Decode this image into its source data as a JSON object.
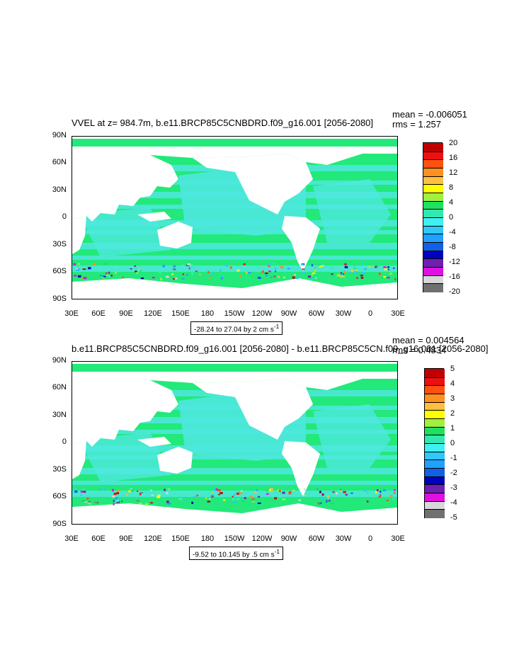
{
  "colors": {
    "land": "#ffffff",
    "ocean_base": "#5fe4a0",
    "ocean_zero_low": "#22e97a",
    "ocean_cyan": "#4ee8de"
  },
  "panels": [
    {
      "title": "VVEL at z= 984.7m, b.e11.BRCP85C5CNBDRD.f09_g16.001 [2056-2080]",
      "mean": "mean = -0.006051",
      "rms": "rms = 1.257",
      "range_label": "-28.24 to 27.04 by 2 cm s",
      "range_unit_sup": "-1",
      "y_ticks": [
        "90N",
        "60N",
        "30N",
        "0",
        "30S",
        "60S",
        "90S"
      ],
      "x_ticks": [
        "30E",
        "60E",
        "90E",
        "120E",
        "150E",
        "180",
        "150W",
        "120W",
        "90W",
        "60W",
        "30W",
        "0",
        "30E"
      ],
      "colorbar_labels": [
        "20",
        "16",
        "12",
        "8",
        "4",
        "0",
        "-4",
        "-8",
        "-12",
        "-16",
        "-20"
      ]
    },
    {
      "title": "b.e11.BRCP85C5CNBDRD.f09_g16.001 [2056-2080] - b.e11.BRCP85C5CN.f09_g16.001 [2056-2080]",
      "mean": "mean = 0.004564",
      "rms": "rms = 0.4834",
      "range_label": "-9.52 to 10.145 by .5 cm s",
      "range_unit_sup": "-1",
      "y_ticks": [
        "90N",
        "60N",
        "30N",
        "0",
        "30S",
        "60S",
        "90S"
      ],
      "x_ticks": [
        "30E",
        "60E",
        "90E",
        "120E",
        "150E",
        "180",
        "150W",
        "120W",
        "90W",
        "60W",
        "30W",
        "0",
        "30E"
      ],
      "colorbar_labels": [
        "5",
        "4",
        "3",
        "2",
        "1",
        "0",
        "-1",
        "-2",
        "-3",
        "-4",
        "-5"
      ]
    }
  ],
  "colorbar_colors": [
    "#c00000",
    "#ee1010",
    "#ff5010",
    "#ff9020",
    "#ffc040",
    "#ffff00",
    "#a0f040",
    "#20e060",
    "#30e8b0",
    "#40f0f0",
    "#30c8f8",
    "#20a0ff",
    "#1060e8",
    "#0000c0",
    "#7020b0",
    "#e010e0",
    "#d8d8d8",
    "#707070"
  ]
}
